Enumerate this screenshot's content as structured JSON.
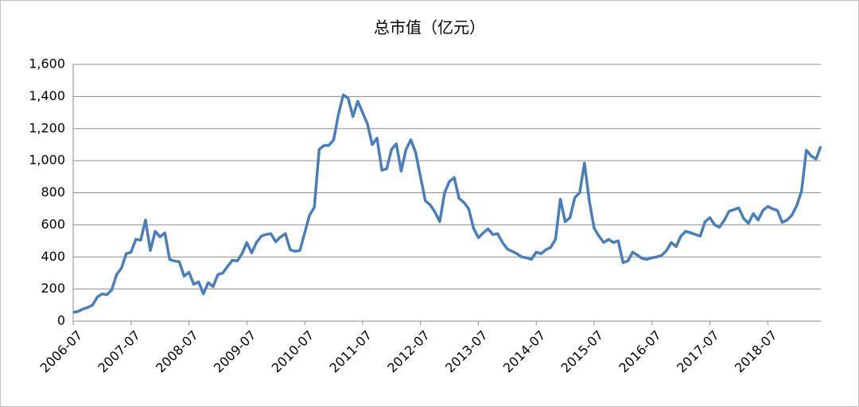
{
  "chart_data": {
    "type": "line",
    "title": "总市值（亿元）",
    "categories": [
      "2006-07",
      null,
      null,
      null,
      null,
      null,
      null,
      null,
      null,
      null,
      null,
      null,
      "2007-07",
      null,
      null,
      null,
      null,
      null,
      null,
      null,
      null,
      null,
      null,
      null,
      "2008-07",
      null,
      null,
      null,
      null,
      null,
      null,
      null,
      null,
      null,
      null,
      null,
      "2009-07",
      null,
      null,
      null,
      null,
      null,
      null,
      null,
      null,
      null,
      null,
      null,
      "2010-07",
      null,
      null,
      null,
      null,
      null,
      null,
      null,
      null,
      null,
      null,
      null,
      "2011-07",
      null,
      null,
      null,
      null,
      null,
      null,
      null,
      null,
      null,
      null,
      null,
      "2012-07",
      null,
      null,
      null,
      null,
      null,
      null,
      null,
      null,
      null,
      null,
      null,
      "2013-07",
      null,
      null,
      null,
      null,
      null,
      null,
      null,
      null,
      null,
      null,
      null,
      "2014-07",
      null,
      null,
      null,
      null,
      null,
      null,
      null,
      null,
      null,
      null,
      null,
      "2015-07",
      null,
      null,
      null,
      null,
      null,
      null,
      null,
      null,
      null,
      null,
      null,
      "2016-07",
      null,
      null,
      null,
      null,
      null,
      null,
      null,
      null,
      null,
      null,
      null,
      "2017-07",
      null,
      null,
      null,
      null,
      null,
      null,
      null,
      null,
      null,
      null,
      null,
      "2018-07",
      null,
      null,
      null,
      null,
      null,
      null,
      null,
      null,
      null,
      null,
      null
    ],
    "values": [
      55,
      60,
      75,
      85,
      100,
      150,
      170,
      165,
      195,
      290,
      330,
      420,
      430,
      510,
      505,
      630,
      440,
      560,
      525,
      550,
      385,
      375,
      370,
      280,
      305,
      230,
      245,
      170,
      240,
      215,
      290,
      300,
      340,
      380,
      375,
      420,
      490,
      425,
      490,
      530,
      540,
      545,
      495,
      525,
      545,
      445,
      435,
      440,
      550,
      660,
      710,
      1070,
      1095,
      1095,
      1130,
      1290,
      1410,
      1390,
      1275,
      1370,
      1300,
      1230,
      1100,
      1140,
      940,
      950,
      1070,
      1105,
      935,
      1070,
      1130,
      1050,
      900,
      750,
      725,
      680,
      620,
      800,
      870,
      895,
      765,
      740,
      700,
      580,
      520,
      550,
      575,
      540,
      545,
      490,
      450,
      435,
      420,
      400,
      395,
      385,
      430,
      420,
      445,
      460,
      510,
      760,
      620,
      645,
      770,
      800,
      985,
      750,
      580,
      530,
      490,
      510,
      490,
      500,
      365,
      375,
      430,
      410,
      390,
      385,
      395,
      400,
      410,
      440,
      490,
      465,
      530,
      560,
      550,
      540,
      530,
      620,
      645,
      600,
      585,
      630,
      685,
      695,
      705,
      640,
      610,
      670,
      630,
      690,
      715,
      700,
      690,
      615,
      630,
      660,
      720,
      810,
      1065,
      1030,
      1010,
      1090
    ],
    "color": "#4a7ebb",
    "ylim": [
      0,
      1600
    ],
    "yticks": [
      0,
      200,
      400,
      600,
      800,
      {
        "value": 1000,
        "label": "1,000"
      },
      {
        "value": 1200,
        "label": "1,200"
      },
      {
        "value": 1400,
        "label": "1,400"
      },
      {
        "value": 1600,
        "label": "1,600"
      }
    ],
    "grid": true
  }
}
